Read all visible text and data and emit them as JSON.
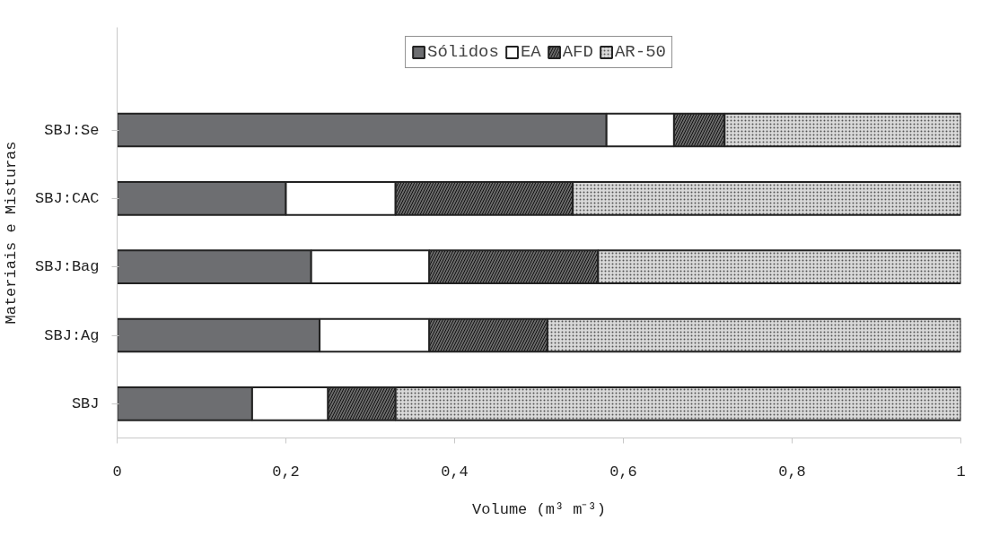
{
  "chart_data": {
    "type": "bar",
    "orientation": "horizontal",
    "stacked": true,
    "xlabel": "Volume (m³ m⁻³)",
    "ylabel": "Materiais e Misturas",
    "categories": [
      "SBJ:Se",
      "SBJ:CAC",
      "SBJ:Bag",
      "SBJ:Ag",
      "SBJ"
    ],
    "series": [
      {
        "name": "Sólidos",
        "color": "#6d6e71",
        "values": [
          0.58,
          0.2,
          0.23,
          0.24,
          0.16
        ]
      },
      {
        "name": "EA",
        "color": "#ffffff",
        "values": [
          0.08,
          0.13,
          0.14,
          0.13,
          0.09
        ]
      },
      {
        "name": "AFD",
        "color": "#6a6a6a",
        "values": [
          0.06,
          0.21,
          0.2,
          0.14,
          0.08
        ]
      },
      {
        "name": "AR-50",
        "color": "#d9d9d9",
        "values": [
          0.28,
          0.46,
          0.43,
          0.49,
          0.67
        ]
      }
    ],
    "xlim": [
      0,
      1
    ],
    "xticks": [
      0,
      {
        "value": 0.2,
        "label": "0,2"
      },
      {
        "value": 0.4,
        "label": "0,4"
      },
      {
        "value": 0.6,
        "label": "0,6"
      },
      {
        "value": 0.8,
        "label": "0,8"
      },
      1
    ],
    "grid": false,
    "legend": "top"
  }
}
